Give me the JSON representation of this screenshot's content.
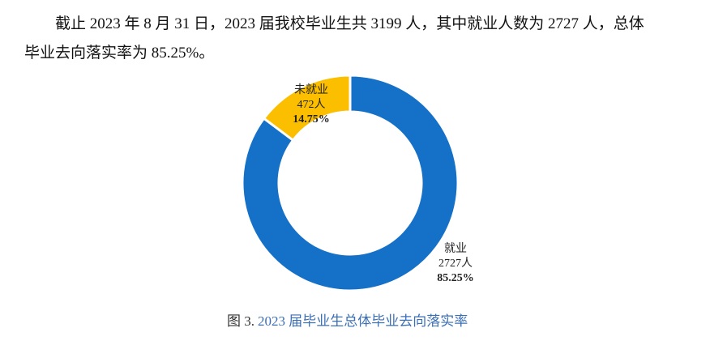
{
  "paragraph": {
    "lines": [
      "截止 2023 年 8 月 31 日，2023 届我校毕业生共 3199 人，其中就业人数为 2727 人，总体",
      "毕业去向落实率为 85.25%。"
    ]
  },
  "chart_data": {
    "type": "pie",
    "donut": true,
    "categories": [
      "就业",
      "未就业"
    ],
    "values": [
      85.25,
      14.75
    ],
    "value_labels": [
      "85.25%",
      "14.75%"
    ],
    "counts": [
      2727,
      472
    ],
    "count_labels": [
      "2727人",
      "472人"
    ],
    "colors": [
      "#1570c8",
      "#fbbf00"
    ]
  },
  "caption": {
    "prefix": "图 3.",
    "text": "2023 届毕业生总体毕业去向落实率"
  }
}
